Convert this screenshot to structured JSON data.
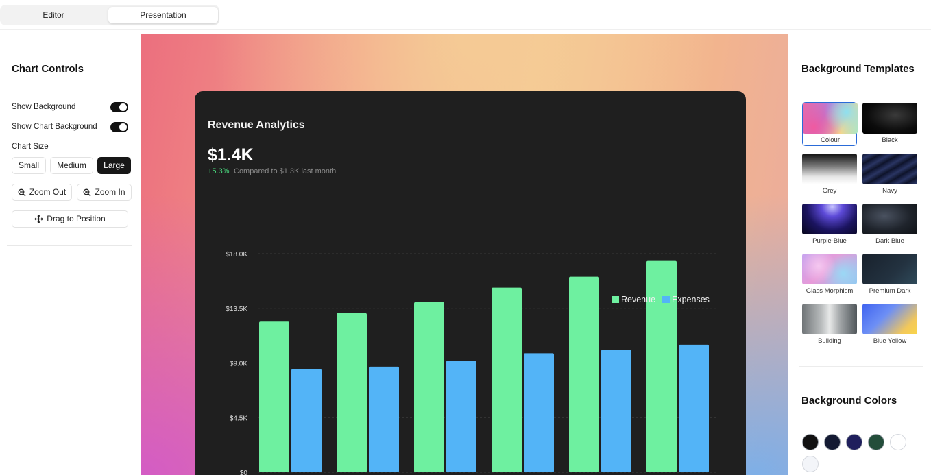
{
  "tabs": {
    "editor": "Editor",
    "presentation": "Presentation"
  },
  "controls": {
    "title": "Chart Controls",
    "show_background": "Show Background",
    "show_chart_background": "Show Chart Background",
    "chart_size": "Chart Size",
    "sizes": [
      "Small",
      "Medium",
      "Large"
    ],
    "selected_size": "Large",
    "zoom_out": "Zoom Out",
    "zoom_in": "Zoom In",
    "drag": "Drag to Position",
    "show_background_on": true,
    "show_chart_background_on": true
  },
  "card": {
    "title": "Revenue Analytics",
    "value": "$1.4K",
    "change": "+5.3%",
    "compare": "Compared to $1.3K last month"
  },
  "chart_data": {
    "type": "bar",
    "categories": [
      "",
      "",
      "",
      "",
      "",
      ""
    ],
    "series": [
      {
        "name": "Revenue",
        "color": "#6ef0a0",
        "values": [
          12400,
          13100,
          14000,
          15200,
          16100,
          17400
        ]
      },
      {
        "name": "Expenses",
        "color": "#53b4f7",
        "values": [
          8500,
          8700,
          9200,
          9800,
          10100,
          10500
        ]
      }
    ],
    "ylim": [
      0,
      18000
    ],
    "yticks": [
      "$0",
      "$4.5K",
      "$9.0K",
      "$13.5K",
      "$18.0K"
    ],
    "ytick_values": [
      0,
      4500,
      9000,
      13500,
      18000
    ],
    "legend": "top-right",
    "grid": true
  },
  "right": {
    "templates_title": "Background Templates",
    "templates": [
      {
        "name": "Colour",
        "selected": true
      },
      {
        "name": "Black"
      },
      {
        "name": "Grey"
      },
      {
        "name": "Navy"
      },
      {
        "name": "Purple-Blue"
      },
      {
        "name": "Dark Blue"
      },
      {
        "name": "Glass Morphism"
      },
      {
        "name": "Premium Dark"
      },
      {
        "name": "Building"
      },
      {
        "name": "Blue Yellow"
      }
    ],
    "colors_title": "Background Colors",
    "colors": [
      "#111111",
      "#141a33",
      "#1f1f5c",
      "#234d3a",
      "#ffffff",
      "#f3f5f9"
    ]
  }
}
